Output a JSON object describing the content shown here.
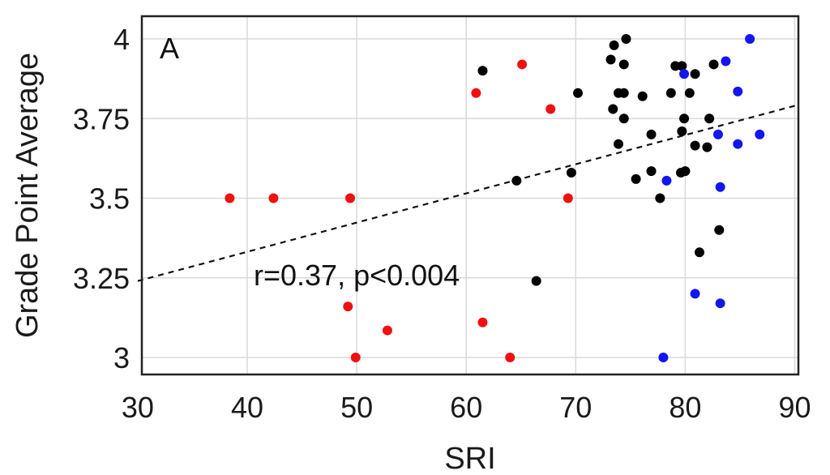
{
  "chart_data": {
    "type": "scatter",
    "panel_label": "A",
    "xlabel": "SRI",
    "ylabel": "Grade Point Average",
    "xlim": [
      30,
      90
    ],
    "ylim": [
      2.95,
      4.02
    ],
    "xticks": [
      30,
      40,
      50,
      60,
      70,
      80,
      90
    ],
    "yticks": [
      3,
      3.25,
      3.5,
      3.75,
      4
    ],
    "ytick_labels": [
      "3",
      "3.25",
      "3.5",
      "3.75",
      "4"
    ],
    "grid": true,
    "annotation": "r=0.37, p<0.004",
    "trendline": {
      "style": "dashed",
      "x": [
        30,
        90
      ],
      "y": [
        3.24,
        3.79
      ]
    },
    "series": [
      {
        "color": "#ee1111",
        "points": [
          [
            38.4,
            3.5
          ],
          [
            42.4,
            3.5
          ],
          [
            49.4,
            3.5
          ],
          [
            49.2,
            3.16
          ],
          [
            49.9,
            3.0
          ],
          [
            52.8,
            3.085
          ],
          [
            61.5,
            3.11
          ],
          [
            64.0,
            3.0
          ],
          [
            60.9,
            3.83
          ],
          [
            65.1,
            3.92
          ],
          [
            67.7,
            3.78
          ],
          [
            69.3,
            3.5
          ]
        ]
      },
      {
        "color": "#000000",
        "points": [
          [
            61.5,
            3.9
          ],
          [
            64.6,
            3.555
          ],
          [
            66.4,
            3.24
          ],
          [
            69.6,
            3.58
          ],
          [
            70.2,
            3.83
          ],
          [
            73.2,
            3.935
          ],
          [
            73.5,
            3.98
          ],
          [
            74.6,
            4.0
          ],
          [
            74.4,
            3.92
          ],
          [
            73.9,
            3.83
          ],
          [
            74.4,
            3.83
          ],
          [
            73.4,
            3.78
          ],
          [
            74.4,
            3.75
          ],
          [
            73.9,
            3.67
          ],
          [
            75.5,
            3.56
          ],
          [
            76.1,
            3.82
          ],
          [
            76.9,
            3.585
          ],
          [
            76.9,
            3.7
          ],
          [
            77.7,
            3.5
          ],
          [
            78.7,
            3.83
          ],
          [
            79.1,
            3.915
          ],
          [
            79.7,
            3.915
          ],
          [
            79.7,
            3.71
          ],
          [
            79.9,
            3.75
          ],
          [
            79.6,
            3.58
          ],
          [
            80.0,
            3.585
          ],
          [
            80.4,
            3.83
          ],
          [
            80.9,
            3.89
          ],
          [
            80.9,
            3.665
          ],
          [
            81.3,
            3.33
          ],
          [
            82.0,
            3.66
          ],
          [
            82.2,
            3.75
          ],
          [
            82.6,
            3.92
          ],
          [
            83.1,
            3.4
          ]
        ]
      },
      {
        "color": "#1515ee",
        "points": [
          [
            78.0,
            3.0
          ],
          [
            78.3,
            3.555
          ],
          [
            79.9,
            3.89
          ],
          [
            80.9,
            3.2
          ],
          [
            83.0,
            3.7
          ],
          [
            83.2,
            3.535
          ],
          [
            83.2,
            3.17
          ],
          [
            83.7,
            3.93
          ],
          [
            84.8,
            3.835
          ],
          [
            84.8,
            3.67
          ],
          [
            85.9,
            4.0
          ],
          [
            86.8,
            3.7
          ]
        ]
      }
    ]
  }
}
